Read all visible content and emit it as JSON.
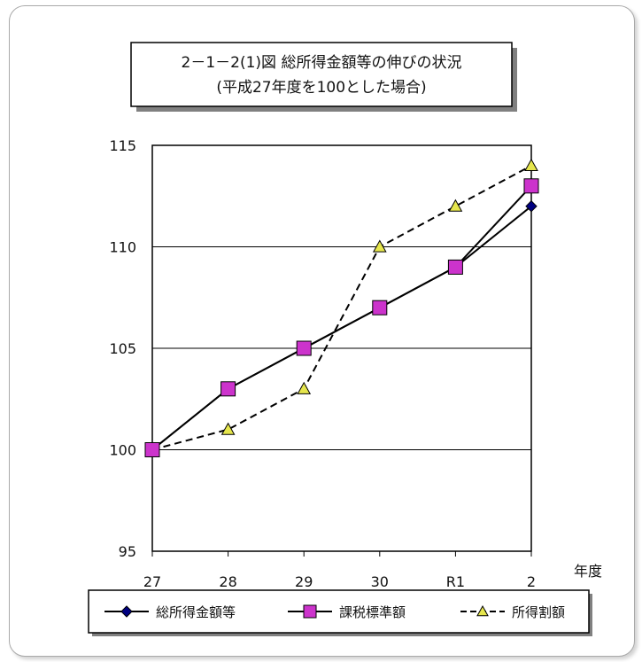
{
  "chart_data": {
    "type": "line",
    "title": "2－1－2(1)図 総所得金額等の伸びの状況",
    "subtitle": "(平成27年度を100とした場合)",
    "xlabel": "年度",
    "ylabel": "",
    "categories": [
      "27",
      "28",
      "29",
      "30",
      "R1",
      "2"
    ],
    "ylim": [
      95,
      115
    ],
    "yticks": [
      "95",
      "100",
      "105",
      "110",
      "115"
    ],
    "grid": true,
    "legend_position": "bottom",
    "series": [
      {
        "name": "総所得金額等",
        "values": [
          100,
          103,
          105,
          107,
          109,
          112
        ],
        "color": "#000080",
        "marker": "diamond",
        "dash": "solid"
      },
      {
        "name": "課税標準額",
        "values": [
          100,
          103,
          105,
          107,
          109,
          113
        ],
        "color": "#cc33cc",
        "marker": "square",
        "dash": "solid"
      },
      {
        "name": "所得割額",
        "values": [
          100,
          101,
          103,
          110,
          112,
          114
        ],
        "color": "#e6e64d",
        "marker": "triangle",
        "dash": "dashed"
      }
    ]
  }
}
